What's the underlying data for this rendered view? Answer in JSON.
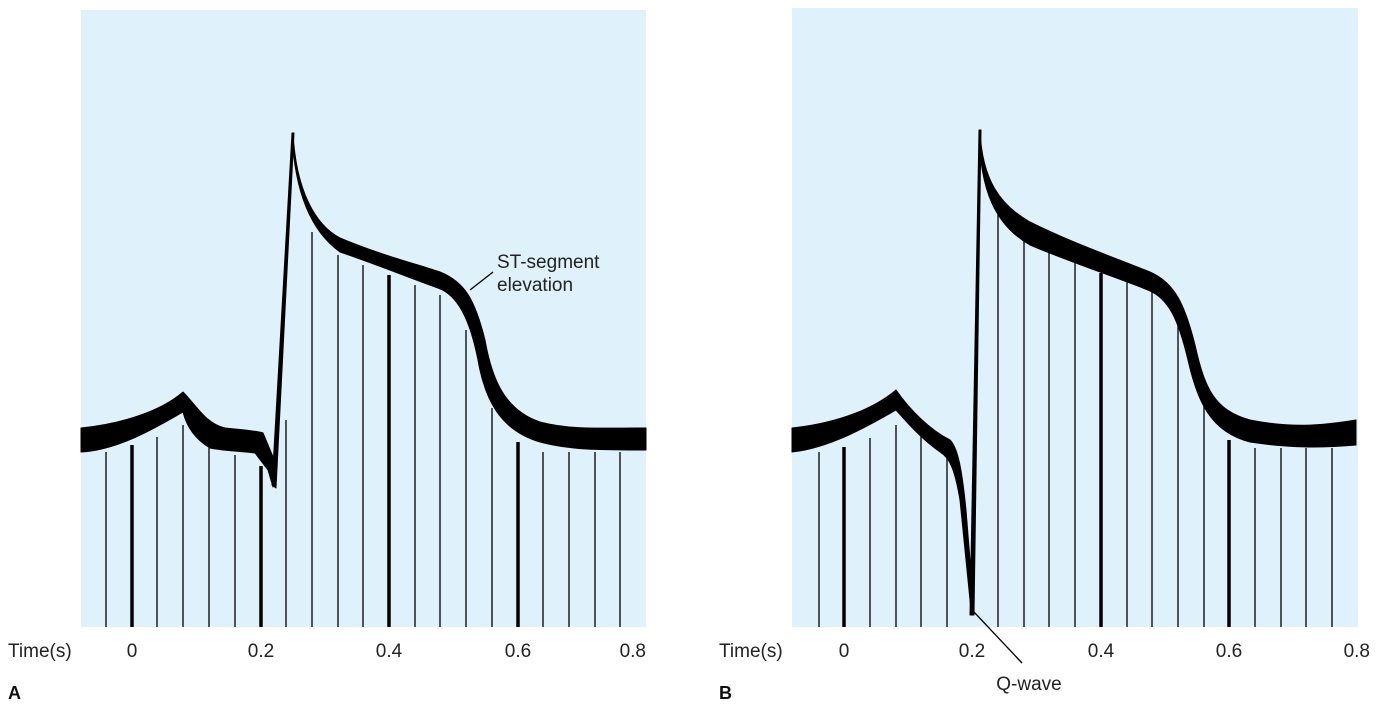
{
  "colors": {
    "plot_background": "#dff1fa",
    "trace": "#000000",
    "text": "#222222"
  },
  "axis": {
    "title": "Time(s)",
    "tick_labels": [
      "0",
      "0.2",
      "0.4",
      "0.6",
      "0.8"
    ]
  },
  "panels": [
    {
      "label": "A",
      "annotation_lines": [
        "ST-segment",
        "elevation"
      ]
    },
    {
      "label": "B",
      "annotation_lines": [
        "Q-wave"
      ]
    }
  ]
}
